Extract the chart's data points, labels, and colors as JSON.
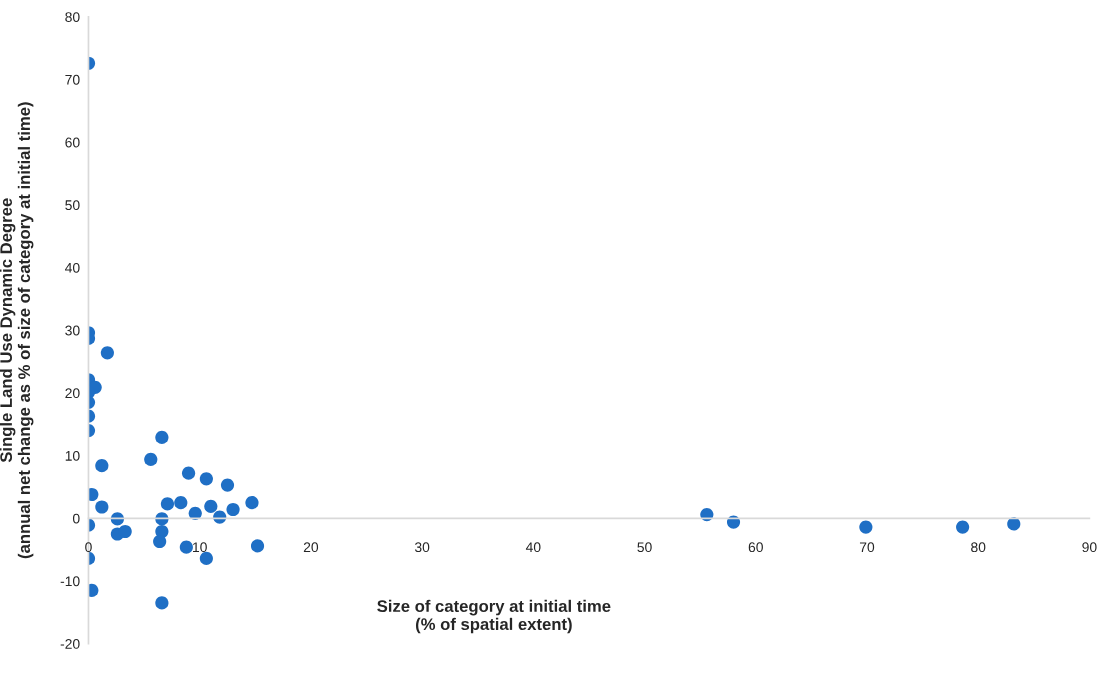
{
  "chart_data": {
    "type": "scatter",
    "xlabel": "Size of category at initial time\n(% of spatial extent)",
    "ylabel": "Single Land Use Dynamic Degree\n(annual net change as % of size of category at initial time)",
    "x": [
      0,
      0,
      0,
      1.7,
      0,
      0.6,
      0,
      0,
      0,
      0,
      6.6,
      5.6,
      1.2,
      9.0,
      10.6,
      12.5,
      0.3,
      7.1,
      8.3,
      14.7,
      1.2,
      11.0,
      13.0,
      9.6,
      11.8,
      2.6,
      6.6,
      0,
      2.6,
      3.3,
      6.6,
      6.4,
      8.8,
      15.2,
      10.6,
      0,
      0.3,
      6.6,
      55.6,
      58.0,
      69.9,
      78.6,
      83.2
    ],
    "values": [
      72.6,
      29.6,
      28.7,
      26.4,
      22.1,
      20.9,
      20.1,
      18.5,
      16.3,
      14.0,
      12.9,
      9.4,
      8.4,
      7.2,
      6.3,
      5.3,
      3.8,
      2.3,
      2.5,
      2.5,
      1.8,
      1.9,
      1.4,
      0.8,
      0.2,
      -0.1,
      -0.1,
      -1.1,
      -2.5,
      -2.1,
      -2.1,
      -3.7,
      -4.6,
      -4.4,
      -6.4,
      -6.4,
      -11.5,
      -13.5,
      0.6,
      -0.6,
      -1.4,
      -1.4,
      -0.9
    ],
    "color": "#1f6fc5",
    "marker": "circle",
    "xlim": [
      0,
      90
    ],
    "xticks": [
      0,
      10,
      20,
      30,
      40,
      50,
      60,
      70,
      80,
      90
    ],
    "ylim": [
      -20,
      80
    ],
    "yticks": [
      -20,
      -10,
      0,
      10,
      20,
      30,
      40,
      50,
      60,
      70,
      80
    ],
    "grid": false,
    "legend": false
  }
}
